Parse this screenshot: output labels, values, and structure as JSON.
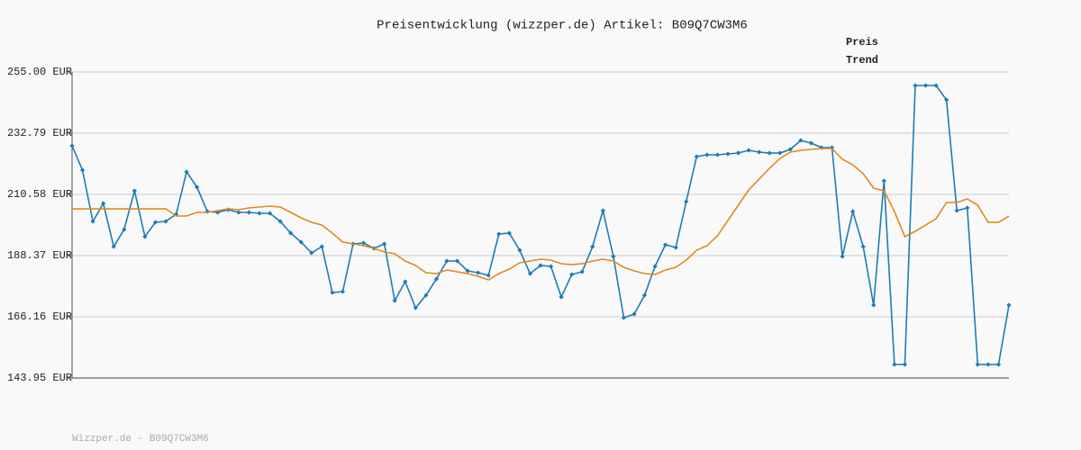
{
  "chart_data": {
    "type": "line",
    "title": "Preisentwicklung (wizzper.de) Artikel: B09Q7CW3M6",
    "footer": "Wizzper.de - B09Q7CW3M6",
    "ylim": [
      143.95,
      255.0
    ],
    "yticks": [
      {
        "value": 143.95,
        "label": "143.95 EUR"
      },
      {
        "value": 166.16,
        "label": "166.16 EUR"
      },
      {
        "value": 188.37,
        "label": "188.37 EUR"
      },
      {
        "value": 210.58,
        "label": "210.58 EUR"
      },
      {
        "value": 232.79,
        "label": "232.79 EUR"
      },
      {
        "value": 255.0,
        "label": "255.00 EUR"
      }
    ],
    "grid": true,
    "legend": "top-right",
    "series": [
      {
        "name": "Preis",
        "color": "#1f7bb6",
        "markers": true,
        "values": [
          228.22,
          219.4,
          200.78,
          207.31,
          191.64,
          197.84,
          211.89,
          195.23,
          200.45,
          200.78,
          203.39,
          218.75,
          213.19,
          204.37,
          204.05,
          205.03,
          204.05,
          204.05,
          203.72,
          203.72,
          200.78,
          196.54,
          193.27,
          189.35,
          191.64,
          174.98,
          175.31,
          192.62,
          192.94,
          190.98,
          192.62,
          172.04,
          178.9,
          169.43,
          174.0,
          179.88,
          186.41,
          186.41,
          182.82,
          182.16,
          181.18,
          196.21,
          196.54,
          190.33,
          181.84,
          184.78,
          184.45,
          173.35,
          181.51,
          182.49,
          191.64,
          204.7,
          188.04,
          165.83,
          167.14,
          174.0,
          184.45,
          192.29,
          191.31,
          207.97,
          224.3,
          224.95,
          224.95,
          225.28,
          225.6,
          226.58,
          225.93,
          225.6,
          225.6,
          226.91,
          230.18,
          229.2,
          227.56,
          227.56,
          188.04,
          204.37,
          191.64,
          170.41,
          215.48,
          148.85,
          148.85,
          250.1,
          250.1,
          250.1,
          244.87,
          204.7,
          205.68,
          148.85,
          148.85,
          148.85,
          170.41
        ]
      },
      {
        "name": "Trend",
        "color": "#e08a1e",
        "markers": false,
        "values": [
          205.35,
          205.35,
          205.35,
          205.35,
          205.35,
          205.35,
          205.35,
          205.35,
          205.35,
          205.35,
          202.74,
          202.74,
          204.05,
          204.05,
          204.7,
          205.35,
          205.03,
          205.68,
          206.01,
          206.33,
          206.01,
          204.05,
          202.09,
          200.45,
          199.47,
          196.54,
          193.27,
          192.62,
          191.96,
          190.98,
          189.68,
          189.02,
          186.41,
          184.78,
          182.16,
          181.84,
          183.14,
          182.49,
          181.84,
          180.86,
          179.55,
          181.84,
          183.47,
          185.76,
          186.41,
          187.06,
          186.74,
          185.43,
          185.1,
          185.43,
          186.41,
          187.06,
          186.41,
          184.12,
          182.82,
          181.84,
          181.51,
          183.14,
          184.12,
          186.74,
          190.33,
          191.96,
          195.55,
          201.11,
          206.66,
          212.21,
          216.13,
          220.05,
          223.64,
          225.93,
          226.58,
          226.91,
          227.24,
          227.24,
          223.32,
          221.36,
          218.09,
          212.87,
          211.89,
          204.37,
          195.23,
          197.19,
          199.47,
          201.76,
          207.64,
          207.64,
          208.95,
          206.66,
          200.45,
          200.45,
          202.74
        ]
      }
    ]
  }
}
